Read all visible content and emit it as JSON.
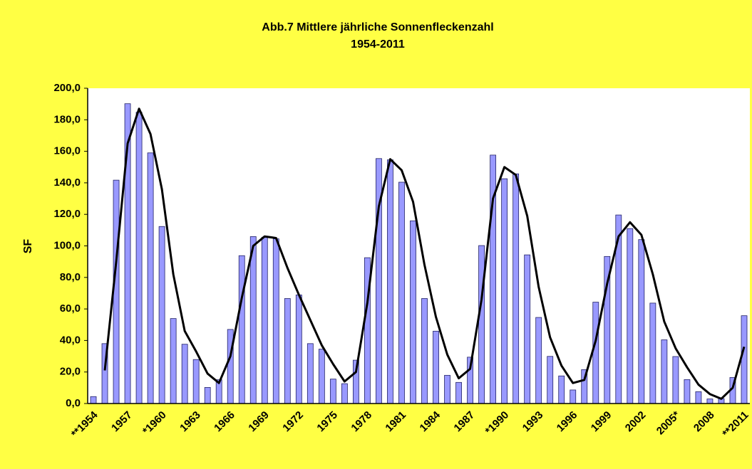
{
  "chart_data": {
    "type": "bar",
    "title": "Abb.7 Mittlere jährliche Sonnenfleckenzahl",
    "subtitle": "1954-2011",
    "y_label": "SF",
    "categories": [
      "**1954",
      null,
      null,
      "1957",
      null,
      null,
      "*1960",
      null,
      null,
      "1963",
      null,
      null,
      "1966",
      null,
      null,
      "1969",
      null,
      null,
      "1972",
      null,
      null,
      "1975",
      null,
      null,
      "1978",
      null,
      null,
      "1981",
      null,
      null,
      "1984",
      null,
      null,
      "1987",
      null,
      null,
      "*1990",
      null,
      null,
      "1993",
      null,
      null,
      "1996",
      null,
      null,
      "1999",
      null,
      null,
      "2002",
      null,
      null,
      "2005*",
      null,
      null,
      "2008",
      null,
      null,
      "**2011"
    ],
    "series": [
      {
        "type": "bar",
        "color": "#9999ff",
        "values": [
          4.4,
          38,
          141.7,
          190.2,
          184.8,
          159,
          112.3,
          53.9,
          37.6,
          27.9,
          10.2,
          15.1,
          47,
          93.8,
          105.9,
          105.5,
          104.5,
          66.6,
          68.9,
          38,
          34.5,
          15.5,
          12.6,
          27.5,
          92.5,
          155.4,
          154.6,
          140.4,
          115.9,
          66.6,
          45.9,
          17.9,
          13.4,
          29.4,
          100.2,
          157.6,
          142.6,
          145.7,
          94.3,
          54.6,
          29.9,
          17.5,
          8.6,
          21.5,
          64.3,
          93.3,
          119.6,
          111,
          104,
          63.7,
          40.4,
          29.8,
          15.2,
          7.5,
          2.9,
          3.1,
          16.5,
          55.7
        ]
      },
      {
        "type": "line",
        "color": "#000000",
        "values": [
          null,
          21,
          90,
          165,
          187,
          171,
          136,
          82,
          46,
          33,
          19,
          13,
          30,
          67,
          100,
          106,
          105,
          86,
          69,
          53,
          37,
          25,
          14,
          20,
          64,
          125,
          155,
          148,
          128,
          88,
          55,
          31,
          16,
          22,
          66,
          130,
          150,
          145,
          119,
          74,
          42,
          24,
          13,
          15,
          40,
          76,
          106,
          115,
          107,
          82,
          52,
          35,
          23,
          12,
          6,
          3,
          10,
          36
        ]
      }
    ],
    "ylim": [
      0,
      200
    ],
    "yticks": [
      {
        "value": 0,
        "label": "0,0"
      },
      {
        "value": 20,
        "label": "20,0"
      },
      {
        "value": 40,
        "label": "40,0"
      },
      {
        "value": 60,
        "label": "60,0"
      },
      {
        "value": 80,
        "label": "80,0"
      },
      {
        "value": 100,
        "label": "100,0"
      },
      {
        "value": 120,
        "label": "120,0"
      },
      {
        "value": 140,
        "label": "140,0"
      },
      {
        "value": 160,
        "label": "160,0"
      },
      {
        "value": 180,
        "label": "180,0"
      },
      {
        "value": 200,
        "label": "200,0"
      }
    ],
    "grid": false,
    "background": "#ffff44"
  }
}
